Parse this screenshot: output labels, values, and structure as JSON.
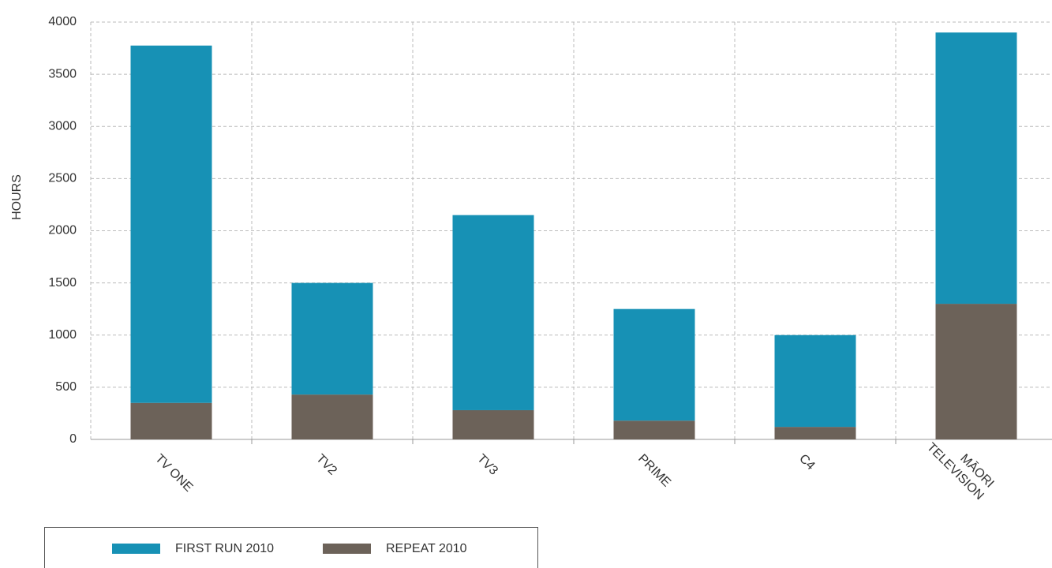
{
  "chart_data": {
    "type": "stacked_bar",
    "y_label": "HOURS",
    "categories": [
      "TV ONE",
      "TV2",
      "TV3",
      "PRIME",
      "C4",
      "MĀORI\nTELEVISION"
    ],
    "series": [
      {
        "name": "REPEAT 2010",
        "color": "#6c6259",
        "values": [
          350,
          430,
          280,
          180,
          120,
          1300
        ]
      },
      {
        "name": "FIRST RUN 2010",
        "color": "#1791b5",
        "values": [
          3425,
          1070,
          1870,
          1070,
          880,
          2600
        ]
      }
    ],
    "legend_order": [
      1,
      0
    ],
    "ylim": [
      0,
      4000
    ],
    "yticks": [
      0,
      500,
      1000,
      1500,
      2000,
      2500,
      3000,
      3500,
      4000
    ],
    "grid": true
  }
}
